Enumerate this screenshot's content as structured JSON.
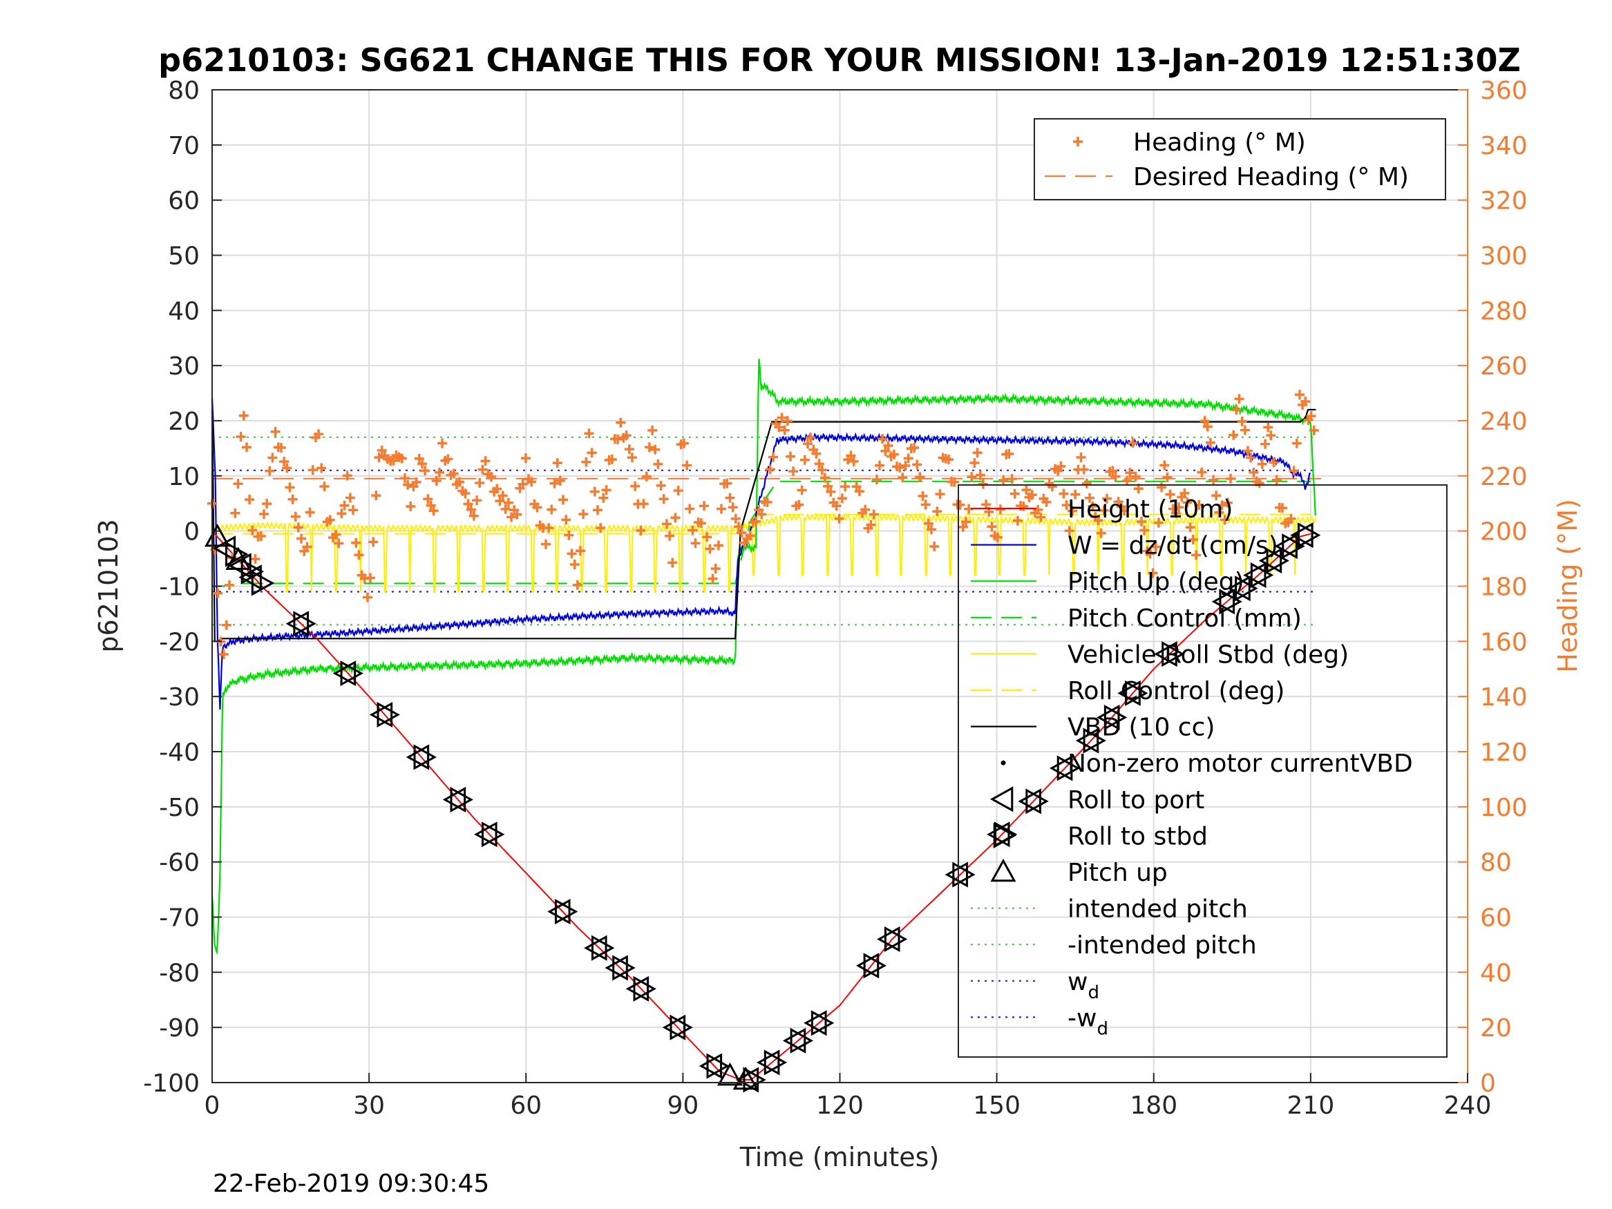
{
  "title": "p6210103: SG621 CHANGE THIS FOR YOUR MISSION! 13-Jan-2019 12:51:30Z",
  "footer": "22-Feb-2019 09:30:45",
  "colors": {
    "heading": "#f47c30",
    "depth": "#ff0000",
    "w": "#0000dd",
    "pitch": "#00dd00",
    "roll": "#ffee00",
    "vbd": "#000000"
  },
  "chart_data": {
    "type": "line",
    "xlabel": "Time (minutes)",
    "ylabel": "p6210103",
    "y2label": "Heading (°M)",
    "xlim": [
      0,
      240
    ],
    "ylim": [
      -100,
      80
    ],
    "y2lim": [
      0,
      360
    ],
    "xticks": [
      0,
      30,
      60,
      90,
      120,
      150,
      180,
      210,
      240
    ],
    "yticks": [
      80,
      70,
      60,
      50,
      40,
      30,
      20,
      10,
      0,
      -10,
      -20,
      -30,
      -40,
      -50,
      -60,
      -70,
      -80,
      -90,
      -100
    ],
    "y2ticks": [
      360,
      340,
      320,
      300,
      280,
      260,
      240,
      220,
      200,
      180,
      160,
      140,
      120,
      100,
      80,
      60,
      40,
      20,
      0
    ],
    "grid": true,
    "legend_top": {
      "placement": "top-right",
      "entries": [
        "Heading (° M)",
        "Desired Heading (° M)"
      ]
    },
    "legend_main": {
      "placement": "right",
      "entries": [
        "Height (10m)",
        "W = dz/dt (cm/s)",
        "Pitch Up (deg)",
        "Pitch Control (mm)",
        "Vehicle Roll Stbd (deg)",
        "Roll Control (deg)",
        "VBD (10 cc)",
        "Non-zero motor currentVBD",
        "Roll to port",
        "Roll to stbd",
        "Pitch up",
        "intended pitch",
        "-intended pitch",
        "w",
        "-w"
      ],
      "subscript": "d"
    },
    "reference_lines": {
      "intended_pitch": 17,
      "w_d": 11
    },
    "series": [
      {
        "name": "Height (10m)",
        "x": [
          0,
          10,
          20,
          30,
          40,
          50,
          60,
          70,
          80,
          90,
          97,
          101,
          103,
          110,
          120,
          130,
          140,
          150,
          160,
          170,
          180,
          190,
          200,
          208,
          210
        ],
        "y": [
          0,
          -10.5,
          -19.5,
          -30,
          -41,
          -52,
          -62,
          -72,
          -81,
          -91,
          -98,
          -99.5,
          -99.5,
          -94,
          -86,
          -74,
          -65,
          -56,
          -46,
          -36,
          -25,
          -16,
          -8,
          -1,
          -0.5
        ]
      },
      {
        "name": "W = dz/dt (cm/s)",
        "x": [
          0,
          0.6,
          1,
          1.5,
          2,
          4,
          8,
          15,
          25,
          40,
          60,
          80,
          98,
          100,
          100.5,
          103,
          106,
          108,
          115,
          130,
          150,
          170,
          185,
          195,
          200,
          205,
          207,
          208,
          209,
          210
        ],
        "y": [
          24,
          10,
          -18,
          -32,
          -21,
          -20,
          -19.5,
          -19,
          -18.5,
          -17.5,
          -16,
          -15,
          -14.5,
          -15,
          -5,
          0,
          10,
          16.5,
          17,
          16.8,
          16.5,
          16.2,
          15.5,
          14.5,
          13.5,
          12.5,
          10,
          10.5,
          7.5,
          11
        ]
      },
      {
        "name": "Pitch Up (deg)",
        "x": [
          0,
          0.5,
          1,
          1.5,
          2,
          3,
          5,
          10,
          20,
          40,
          60,
          80,
          100,
          100.5,
          101,
          104,
          104.5,
          105,
          106,
          107,
          108,
          120,
          150,
          170,
          190,
          205,
          210,
          211
        ],
        "y": [
          -66,
          -76,
          -76,
          -62,
          -30,
          -28,
          -27,
          -26,
          -25,
          -24.5,
          -24,
          -23,
          -23.5,
          -5,
          -3,
          -3,
          32,
          26,
          26,
          25,
          23.5,
          23.5,
          24,
          23.5,
          23,
          21,
          20,
          1
        ]
      },
      {
        "name": "Pitch Control (mm)",
        "x": [
          0,
          2,
          5,
          100,
          103,
          108,
          210
        ],
        "y": [
          -10,
          -10,
          -9.5,
          -9.5,
          2,
          9,
          9
        ]
      },
      {
        "name": "Vehicle Roll Stbd (deg)",
        "x": [
          0,
          10,
          30,
          60,
          90,
          100,
          110,
          130,
          150,
          170,
          190,
          210
        ],
        "y": [
          0.5,
          1,
          0.5,
          0.5,
          0.5,
          0.5,
          2.5,
          2.5,
          2,
          1.5,
          2,
          2
        ]
      },
      {
        "name": "Roll Control (deg)",
        "x": [
          0,
          100,
          105,
          210
        ],
        "y": [
          -0.5,
          -0.5,
          3,
          3
        ]
      },
      {
        "name": "VBD (10 cc)",
        "x": [
          0,
          0.5,
          1,
          2,
          100,
          101,
          107,
          205,
          208,
          209,
          209.5,
          210,
          211
        ],
        "y": [
          24,
          -20,
          -20,
          -19.5,
          -19.5,
          0,
          19.8,
          19.8,
          19.8,
          20.5,
          22,
          22,
          22
        ]
      },
      {
        "name": "Heading (° M)",
        "x": [
          0,
          2,
          4,
          6,
          8,
          10,
          12,
          14,
          16,
          18,
          20,
          22,
          24,
          26,
          28,
          30,
          32,
          34,
          36,
          38,
          40,
          42,
          44,
          46,
          48,
          50,
          52,
          54,
          56,
          58,
          60,
          62,
          64,
          66,
          68,
          70,
          72,
          74,
          76,
          78,
          80,
          82,
          84,
          86,
          88,
          90,
          92,
          94,
          96,
          98,
          100,
          102,
          104,
          106,
          108,
          110,
          112,
          114,
          116,
          118,
          120,
          122,
          124,
          126,
          128,
          130,
          132,
          134,
          136,
          138,
          140,
          142,
          144,
          146,
          148,
          150,
          152,
          154,
          156,
          158,
          160,
          162,
          164,
          166,
          168,
          170,
          172,
          174,
          176,
          178,
          180,
          182,
          184,
          186,
          188,
          190,
          192,
          194,
          196,
          198,
          200,
          202,
          204,
          206,
          208,
          210,
          212
        ],
        "y": [
          210,
          150,
          195,
          245,
          190,
          205,
          235,
          225,
          205,
          190,
          240,
          205,
          195,
          220,
          190,
          175,
          230,
          225,
          228,
          210,
          228,
          205,
          230,
          220,
          215,
          205,
          226,
          215,
          210,
          205,
          225,
          208,
          195,
          225,
          200,
          180,
          238,
          200,
          225,
          238,
          230,
          200,
          238,
          215,
          190,
          238,
          195,
          208,
          180,
          220,
          205,
          195,
          205,
          210,
          240,
          238,
          205,
          235,
          225,
          215,
          205,
          230,
          210,
          200,
          232,
          228,
          220,
          232,
          212,
          195,
          230,
          215,
          200,
          230,
          210,
          195,
          232,
          205,
          215,
          205,
          215,
          225,
          200,
          228,
          210,
          200,
          225,
          205,
          230,
          200,
          185,
          225,
          205,
          215,
          190,
          245,
          210,
          205,
          250,
          230,
          215,
          240,
          210,
          200,
          250,
          240,
          235
        ]
      },
      {
        "name": "Desired Heading (° M)",
        "x": [
          0,
          212
        ],
        "y": [
          219,
          219
        ]
      }
    ],
    "markers": {
      "roll_to_port_x": [
        3,
        6,
        8,
        17,
        26,
        33,
        40,
        47,
        53,
        67,
        74,
        78,
        82,
        89,
        96,
        103,
        107,
        112,
        116,
        126,
        130,
        143,
        151,
        157,
        163,
        168,
        172,
        176,
        183,
        194,
        197,
        200,
        203,
        206,
        209
      ],
      "roll_to_stbd_x": [
        4,
        7,
        9,
        17,
        26,
        33,
        40,
        47,
        53,
        67,
        74,
        78,
        82,
        89,
        96,
        103,
        107,
        112,
        116,
        126,
        130,
        143,
        151,
        157,
        163,
        168,
        172,
        176,
        183,
        194,
        197,
        200,
        203,
        206,
        209
      ],
      "pitch_up_x": [
        1,
        5,
        99,
        102
      ]
    }
  }
}
